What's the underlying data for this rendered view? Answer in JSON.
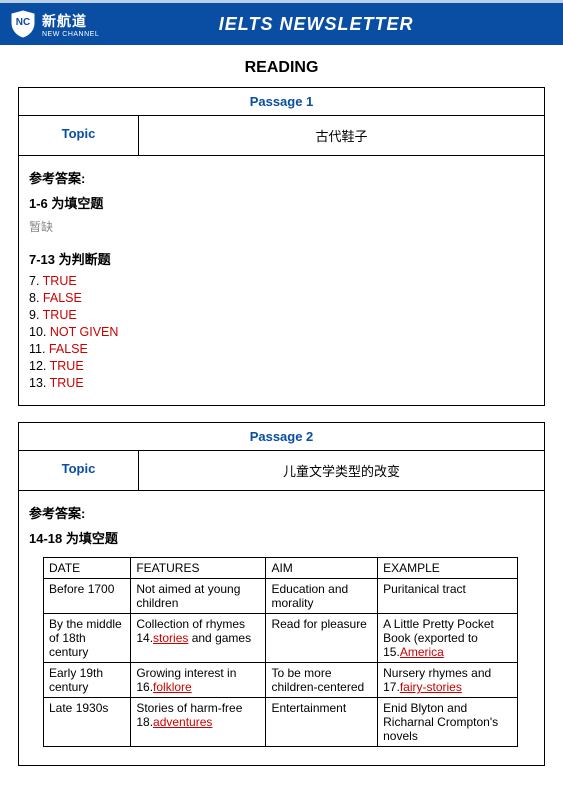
{
  "header": {
    "logo_cn": "新航道",
    "logo_en": "NEW CHANNEL",
    "title": "IELTS  NEWSLETTER",
    "accent_color": "#0a4ea3",
    "topline_color": "#b9cfe8"
  },
  "section_title": "READING",
  "passage1": {
    "passage_label": "Passage 1",
    "topic_label": "Topic",
    "topic_value": "古代鞋子",
    "ref_answer_label": "参考答案:",
    "group1_heading": "1-6 为填空题",
    "group1_placeholder": "暂缺",
    "group2_heading": "7-13 为判断题",
    "answers": [
      {
        "num": "7.",
        "val": "TRUE"
      },
      {
        "num": "8.",
        "val": "FALSE"
      },
      {
        "num": "9.",
        "val": "TRUE"
      },
      {
        "num": "10.",
        "val": "NOT GIVEN"
      },
      {
        "num": "11.",
        "val": "FALSE"
      },
      {
        "num": "12.",
        "val": "TRUE"
      },
      {
        "num": "13.",
        "val": "TRUE"
      }
    ]
  },
  "passage2": {
    "passage_label": "Passage 2",
    "topic_label": "Topic",
    "topic_value": "儿童文学类型的改变",
    "ref_answer_label": "参考答案:",
    "group1_heading": "14-18 为填空题",
    "table": {
      "columns": [
        "DATE",
        "FEATURES",
        "AIM",
        "EXAMPLE"
      ],
      "rows": [
        {
          "date": "Before 1700",
          "features_plain": "Not aimed at young children",
          "aim": "Education and morality",
          "example_plain": "Puritanical tract"
        },
        {
          "date": "By the middle of 18th century",
          "features_pre": "   Collection of rhymes 14.",
          "features_ans": "stories",
          "features_post": " and games",
          "aim": "Read for pleasure",
          "example_pre": "   A Little Pretty Pocket Book    (exported to 15.",
          "example_ans": "America"
        },
        {
          "date": "Early 19th century",
          "features_pre": "Growing interest in 16.",
          "features_ans": "folklore",
          "aim": "To be more children-centered",
          "example_pre": "Nursery rhymes and 17.",
          "example_ans": "fairy-stories"
        },
        {
          "date": "Late 1930s",
          "features_pre": "Stories of harm-free 18.",
          "features_ans": "adventures",
          "aim": "Entertainment",
          "example_plain": "Enid Blyton and Richarnal Crompton's novels"
        }
      ]
    }
  }
}
